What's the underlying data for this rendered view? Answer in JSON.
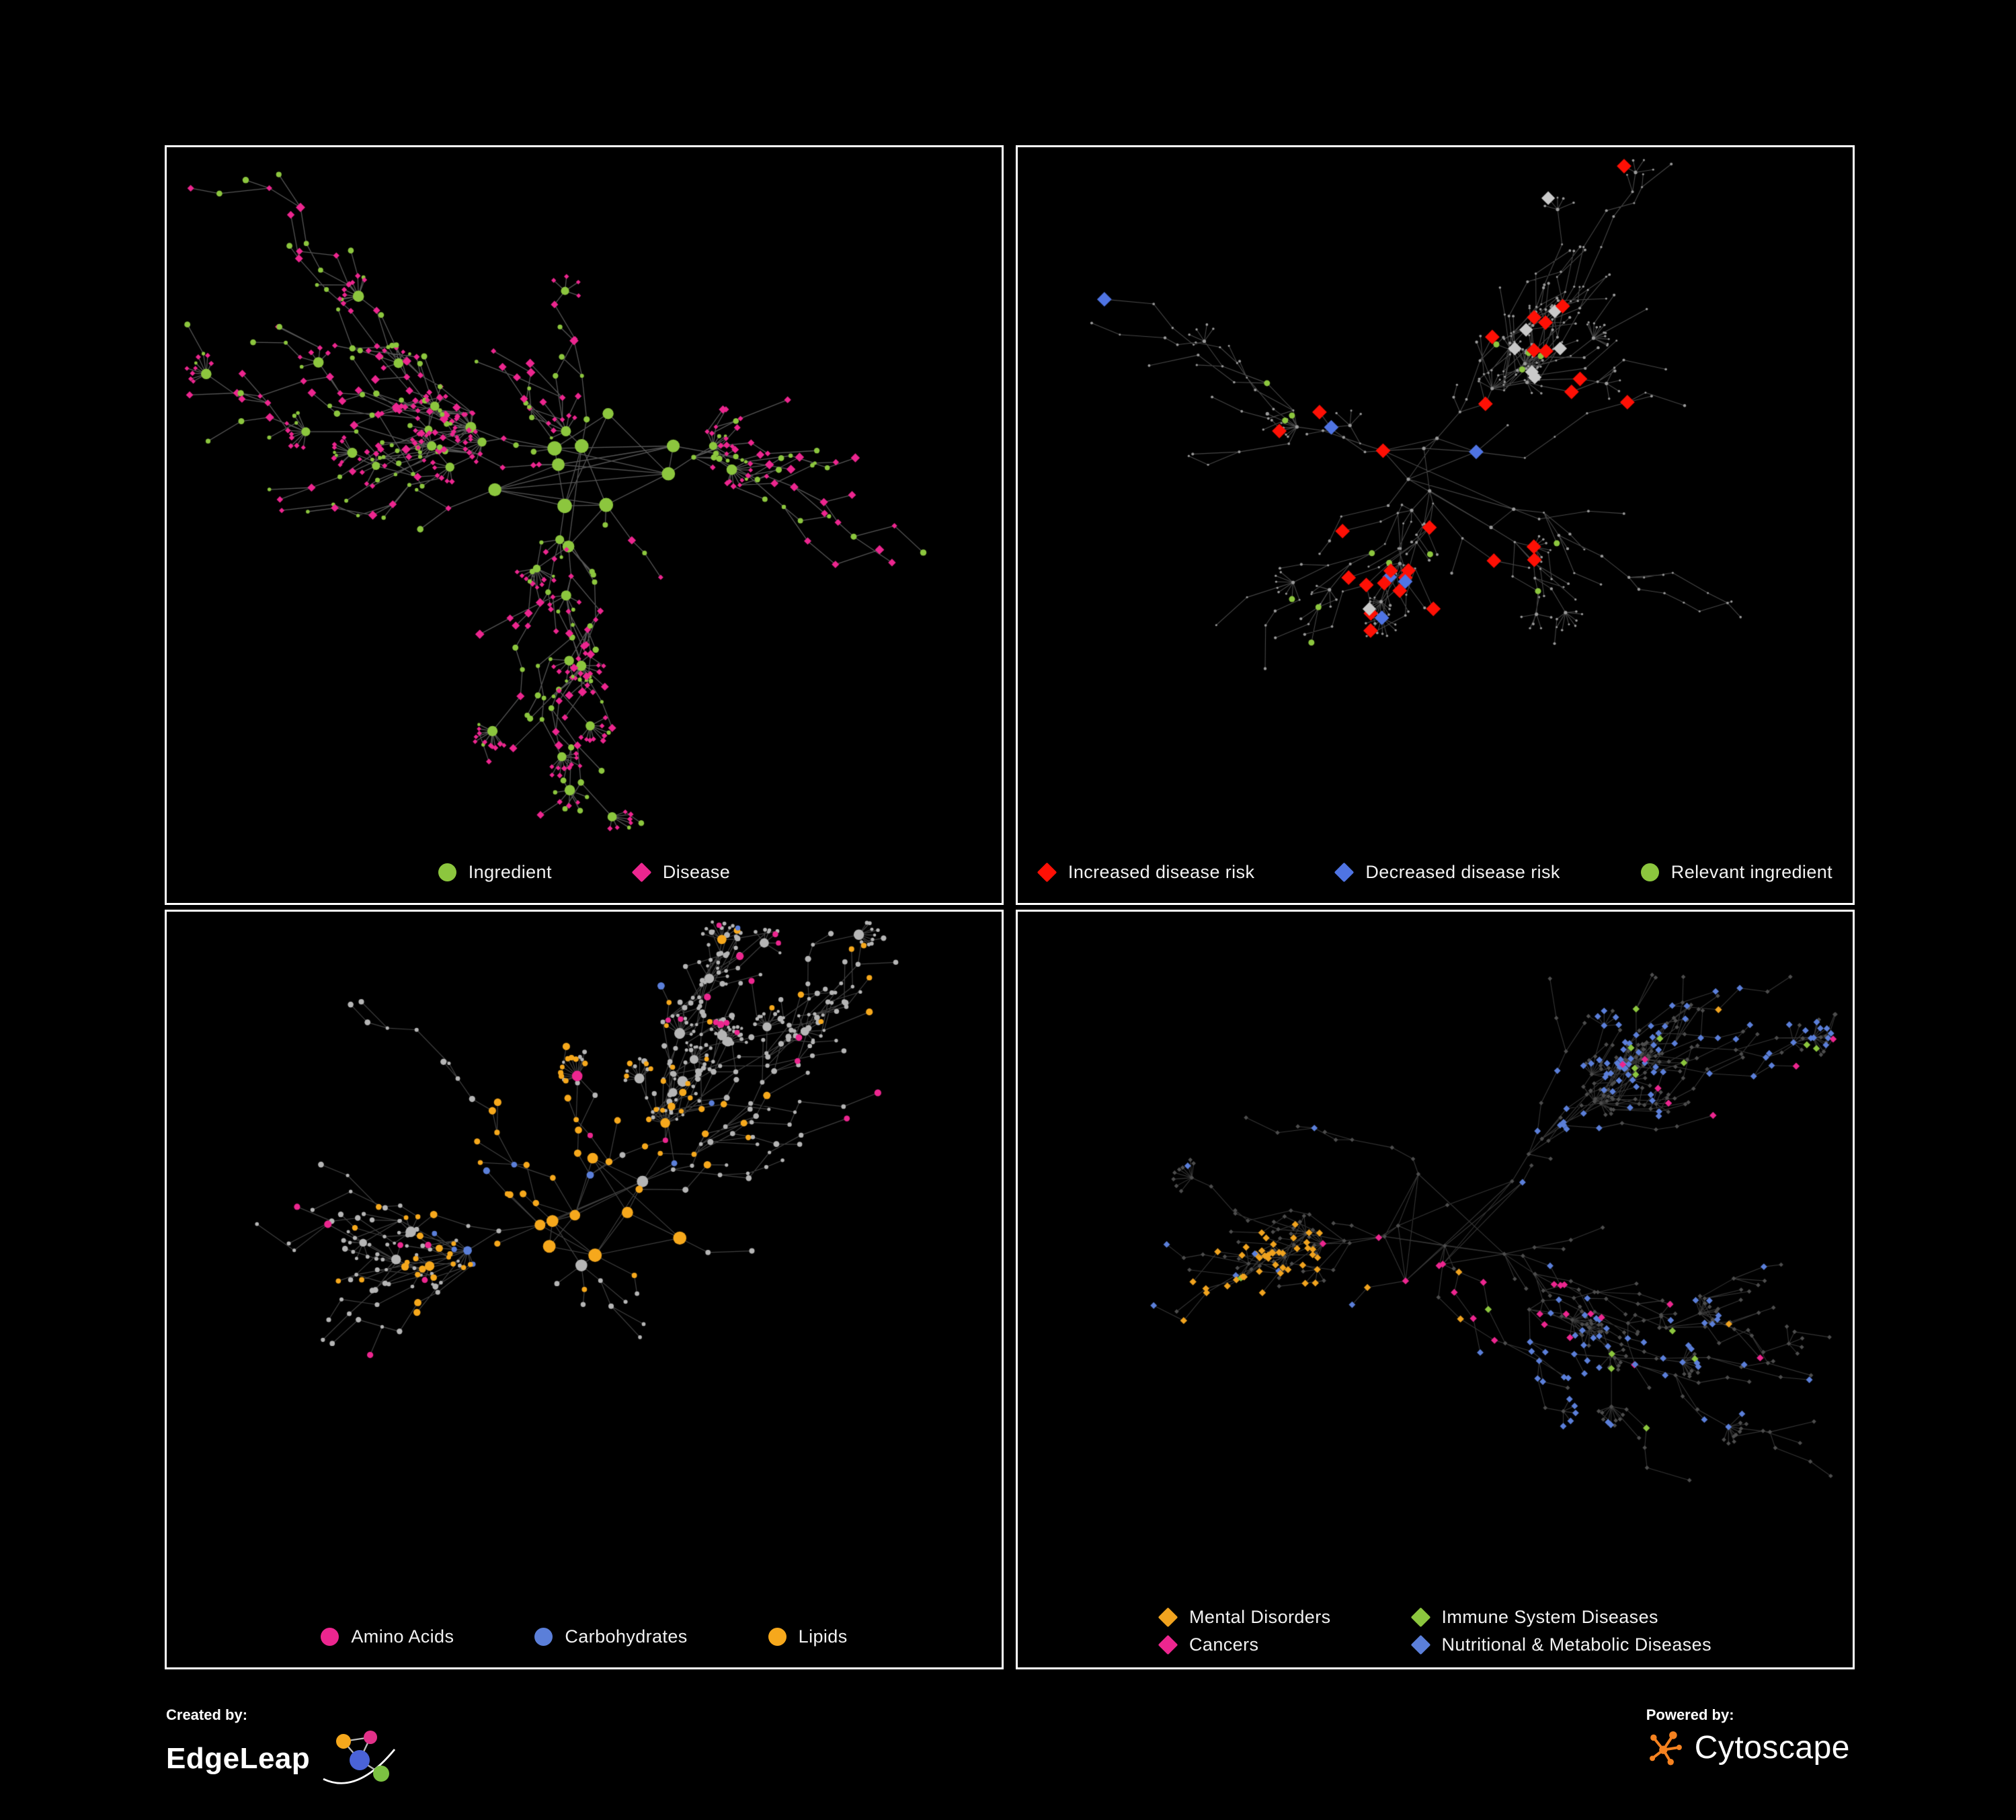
{
  "footer": {
    "created_by_label": "Created by:",
    "created_by_brand": "EdgeLeap",
    "powered_by_label": "Powered by:",
    "powered_by_brand": "Cytoscape"
  },
  "panels": [
    {
      "name": "ingredient-disease-network",
      "graph_type": "network",
      "edge_color": "#9a9a9a",
      "legend": [
        {
          "label": "Ingredient",
          "color": "#8cc63e",
          "shape": "circle"
        },
        {
          "label": "Disease",
          "color": "#ec268f",
          "shape": "diamond"
        }
      ]
    },
    {
      "name": "disease-risk-network",
      "graph_type": "network",
      "edge_color": "#8c8c8c",
      "base_node_color": "#9a9a9a",
      "other_node_color": "#c9c9c9",
      "legend": [
        {
          "label": "Increased disease risk",
          "color": "#fe1005",
          "shape": "diamond"
        },
        {
          "label": "Decreased disease risk",
          "color": "#4f74e3",
          "shape": "diamond"
        },
        {
          "label": "Relevant ingredient",
          "color": "#8cc63e",
          "shape": "circle"
        }
      ]
    },
    {
      "name": "nutrient-class-network",
      "graph_type": "network",
      "edge_color": "#8c8c8c",
      "base_node_color": "#b5b5b5",
      "legend": [
        {
          "label": "Amino Acids",
          "color": "#ec268f",
          "shape": "circle"
        },
        {
          "label": "Carbohydrates",
          "color": "#5b7fd9",
          "shape": "circle"
        },
        {
          "label": "Lipids",
          "color": "#f6a81c",
          "shape": "circle"
        }
      ]
    },
    {
      "name": "disease-category-network",
      "graph_type": "network",
      "edge_color": "#848484",
      "base_node_color": "#4d4d4d",
      "legend": [
        {
          "label": "Mental Disorders",
          "color": "#f0a31f",
          "shape": "diamond"
        },
        {
          "label": "Immune System Diseases",
          "color": "#8cc63e",
          "shape": "diamond"
        },
        {
          "label": "Cancers",
          "color": "#ec268f",
          "shape": "diamond"
        },
        {
          "label": "Nutritional & Metabolic Diseases",
          "color": "#5b7fd9",
          "shape": "diamond"
        }
      ]
    }
  ],
  "chart_data": [
    {
      "type": "network",
      "title": "",
      "legend_entries": [
        "Ingredient",
        "Disease"
      ],
      "legend_position": "bottom"
    },
    {
      "type": "network",
      "title": "",
      "legend_entries": [
        "Increased disease risk",
        "Decreased disease risk",
        "Relevant ingredient"
      ],
      "legend_position": "bottom"
    },
    {
      "type": "network",
      "title": "",
      "legend_entries": [
        "Amino Acids",
        "Carbohydrates",
        "Lipids"
      ],
      "legend_position": "bottom"
    },
    {
      "type": "network",
      "title": "",
      "legend_entries": [
        "Mental Disorders",
        "Immune System Diseases",
        "Cancers",
        "Nutritional & Metabolic Diseases"
      ],
      "legend_position": "bottom"
    }
  ]
}
